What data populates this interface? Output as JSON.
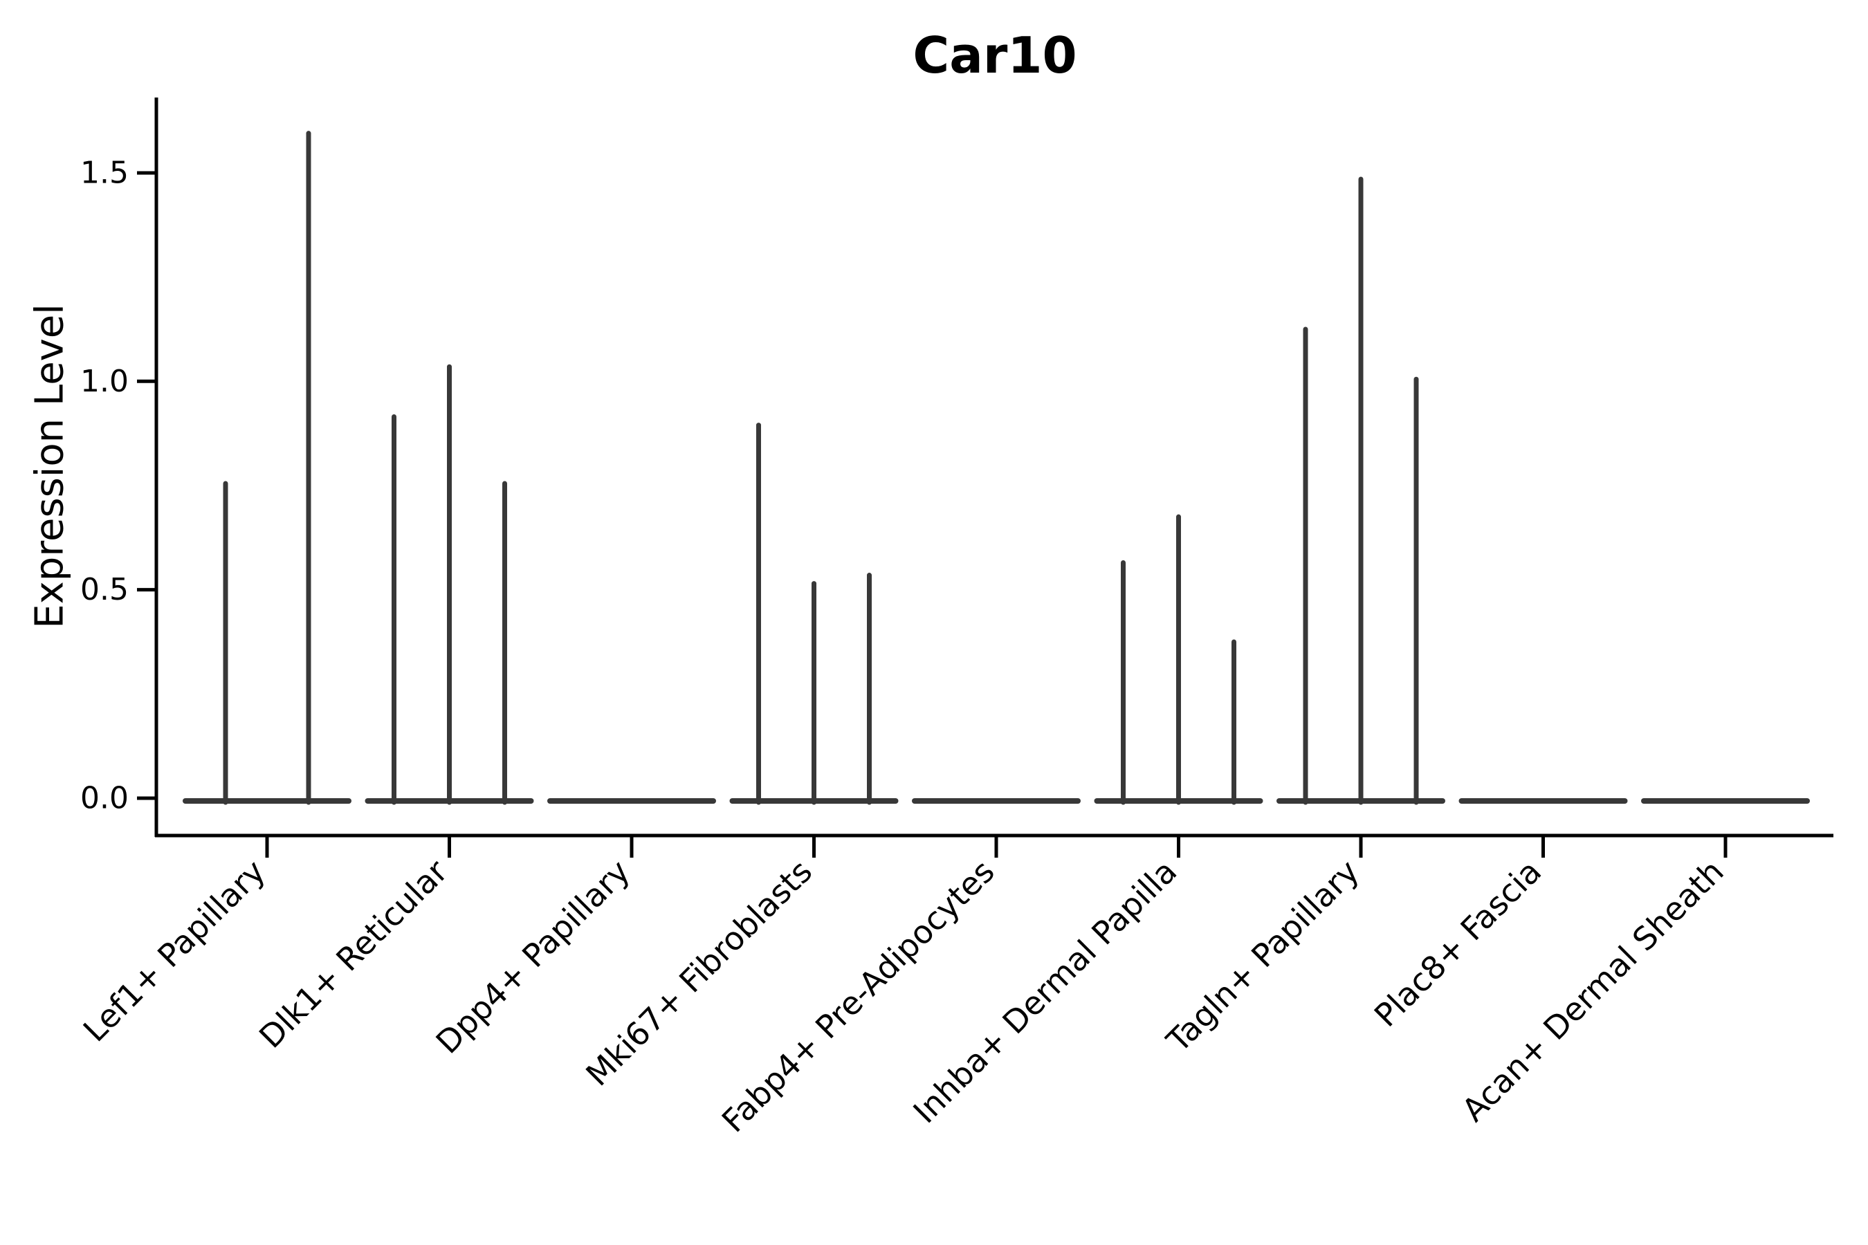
{
  "page": {
    "background": "#ffffff"
  },
  "chart_data": {
    "type": "violin",
    "title": "Car10",
    "ylabel": "Expression Level",
    "xlabel": "",
    "y_ticks": [
      0.0,
      0.5,
      1.0,
      1.5
    ],
    "ylim": [
      -0.09,
      1.68
    ],
    "grid": false,
    "legend": false,
    "categories": [
      "Lef1+ Papillary",
      "Dlk1+ Reticular",
      "Dpp4+ Papillary",
      "Mki67+ Fibroblasts",
      "Fabp4+ Pre-Adipocytes",
      "Inhba+ Dermal Papilla",
      "Tagln+ Papillary",
      "Plac8+ Fascia",
      "Acan+ Dermal Sheath"
    ],
    "series": [
      {
        "category": "Lef1+ Papillary",
        "spike_max_values": [
          0.76,
          1.6
        ]
      },
      {
        "category": "Dlk1+ Reticular",
        "spike_max_values": [
          0.92,
          1.04,
          0.76
        ]
      },
      {
        "category": "Dpp4+ Papillary",
        "spike_max_values": []
      },
      {
        "category": "Mki67+ Fibroblasts",
        "spike_max_values": [
          0.9,
          0.52,
          0.54
        ]
      },
      {
        "category": "Fabp4+ Pre-Adipocytes",
        "spike_max_values": []
      },
      {
        "category": "Inhba+ Dermal Papilla",
        "spike_max_values": [
          0.57,
          0.68,
          0.38
        ]
      },
      {
        "category": "Tagln+ Papillary",
        "spike_max_values": [
          1.13,
          1.49,
          1.01
        ]
      },
      {
        "category": "Plac8+ Fascia",
        "spike_max_values": []
      },
      {
        "category": "Acan+ Dermal Sheath",
        "spike_max_values": []
      }
    ],
    "colors": {
      "violin_line": "#383838",
      "axis": "#000000",
      "text": "#000000",
      "background": "#ffffff"
    }
  }
}
